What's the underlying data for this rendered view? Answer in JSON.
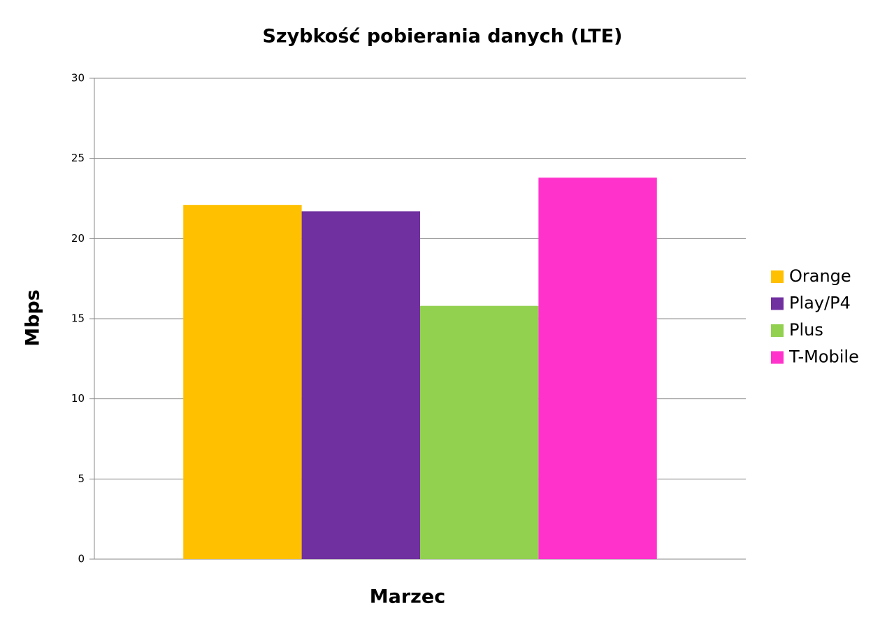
{
  "chart_data": {
    "type": "bar",
    "title": "Szybkość pobierania danych (LTE)",
    "y_label": "Mbps",
    "categories": [
      "Marzec"
    ],
    "series": [
      {
        "name": "Orange",
        "color": "#ffc000",
        "values": [
          22.1
        ]
      },
      {
        "name": "Play/P4",
        "color": "#7030a0",
        "values": [
          21.7
        ]
      },
      {
        "name": "Plus",
        "color": "#92d050",
        "values": [
          15.8
        ]
      },
      {
        "name": "T-Mobile",
        "color": "#ff33cc",
        "values": [
          23.8
        ]
      }
    ],
    "ylim": [
      0,
      30
    ],
    "yticks": [
      0,
      5,
      10,
      15,
      20,
      25,
      30
    ],
    "grid": true,
    "legend": "right"
  }
}
